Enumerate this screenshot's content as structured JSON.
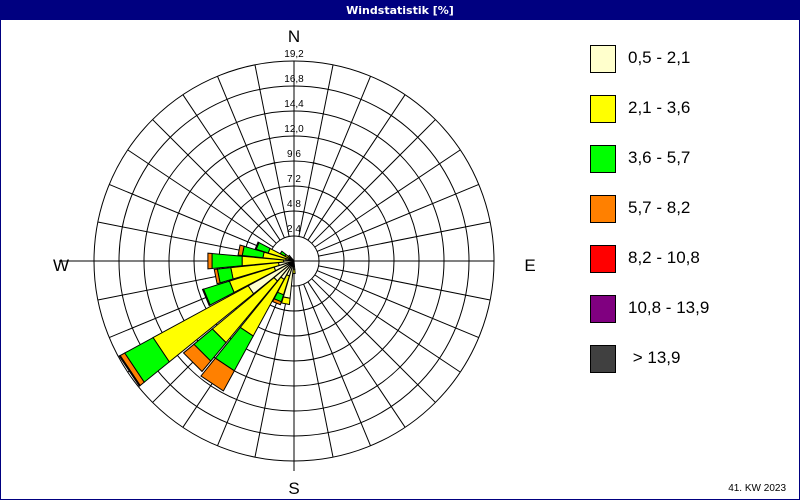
{
  "title": "Windstatistik [%]",
  "footer": "41. KW 2023",
  "chart_data": {
    "type": "windrose",
    "title": "Windstatistik [%]",
    "directions": {
      "north": "N",
      "east": "E",
      "south": "S",
      "west": "W"
    },
    "radial_ticks": [
      "2,4",
      "4,8",
      "7,2",
      "9,6",
      "12,0",
      "14,4",
      "16,8",
      "19,2"
    ],
    "radial_tick_values": [
      2.4,
      4.8,
      7.2,
      9.6,
      12.0,
      14.4,
      16.8,
      19.2
    ],
    "rmax": 19.2,
    "sector_count": 32,
    "classes": [
      {
        "label": "0,5 - 2,1",
        "color": "#FFFFCC"
      },
      {
        "label": "2,1 - 3,6",
        "color": "#FFFF00"
      },
      {
        "label": "3,6 - 5,7",
        "color": "#00FF00"
      },
      {
        "label": "5,7 - 8,2",
        "color": "#FF8000"
      },
      {
        "label": "8,2 - 10,8",
        "color": "#FF0000"
      },
      {
        "label": "10,8 - 13,9",
        "color": "#800080"
      },
      {
        "label": " > 13,9",
        "color": "#404040"
      }
    ],
    "sectors": [
      {
        "direction": 180,
        "values": [
          0.8,
          0.4,
          0,
          0,
          0,
          0,
          0
        ]
      },
      {
        "direction": 191.25,
        "values": [
          3.6,
          0.6,
          0,
          0,
          0,
          0,
          0
        ]
      },
      {
        "direction": 202.5,
        "values": [
          1.5,
          1.9,
          0.7,
          0.3,
          0,
          0,
          0
        ]
      },
      {
        "direction": 213.75,
        "values": [
          2.0,
          6.2,
          3.8,
          2.2,
          0,
          0,
          0
        ]
      },
      {
        "direction": 225,
        "values": [
          2.5,
          7.7,
          2.3,
          1.3,
          0,
          0,
          0
        ]
      },
      {
        "direction": 236.25,
        "values": [
          5.0,
          10.4,
          3.1,
          0.5,
          0.1,
          0,
          0
        ]
      },
      {
        "direction": 247.5,
        "values": [
          2.0,
          4.5,
          2.6,
          0.1,
          0,
          0,
          0
        ]
      },
      {
        "direction": 258.75,
        "values": [
          1.5,
          4.6,
          1.3,
          0.3,
          0,
          0,
          0
        ]
      },
      {
        "direction": 270,
        "values": [
          1.0,
          4.0,
          2.9,
          0.4,
          0,
          0,
          0
        ]
      },
      {
        "direction": 281.25,
        "values": [
          0.8,
          2.2,
          2.0,
          0.4,
          0,
          0,
          0
        ]
      },
      {
        "direction": 292.5,
        "values": [
          0.5,
          2.1,
          1.2,
          0.1,
          0,
          0,
          0
        ]
      },
      {
        "direction": 303.75,
        "values": [
          0.3,
          0.7,
          0.5,
          0,
          0,
          0,
          0
        ]
      },
      {
        "direction": 315,
        "values": [
          0.3,
          0.4,
          0,
          0,
          0,
          0,
          0
        ]
      }
    ]
  }
}
